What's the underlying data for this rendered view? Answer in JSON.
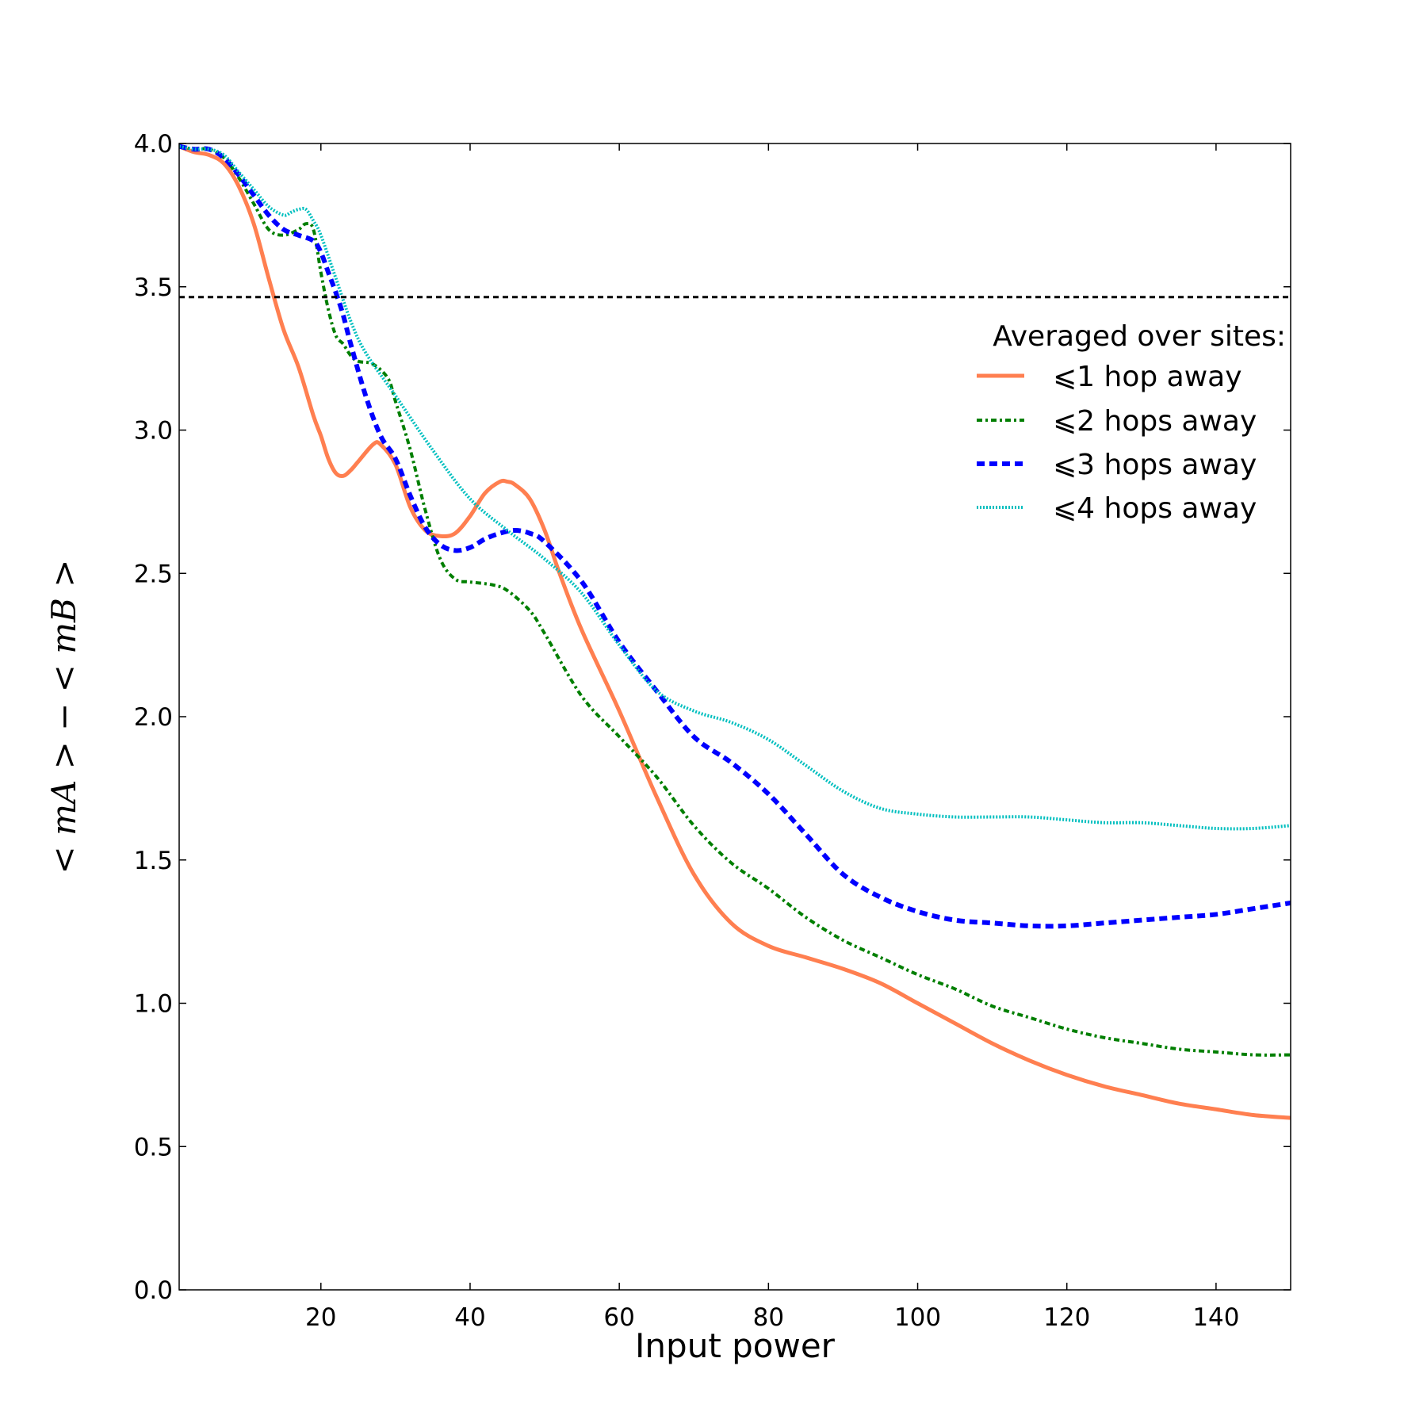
{
  "chart_data": {
    "type": "line",
    "title": "",
    "xlabel": "Input power",
    "ylabel": "< m_A > − < m_B >",
    "ylabel_display": "< mA > − < mB >",
    "xlim": [
      1,
      150
    ],
    "ylim": [
      0.0,
      4.0
    ],
    "xticks": [
      20,
      40,
      60,
      80,
      100,
      120,
      140
    ],
    "yticks": [
      "0.0",
      "0.5",
      "1.0",
      "1.5",
      "2.0",
      "2.5",
      "3.0",
      "3.5",
      "4.0"
    ],
    "grid": false,
    "legend_placement": "upper-right",
    "legend_title": "Averaged over sites:",
    "reference_line": {
      "y": 3.464,
      "style": "dashed",
      "color": "#000000"
    },
    "series": [
      {
        "name": "⩽1 hop away",
        "color": "#ff7f50",
        "dash": "solid",
        "width": 5,
        "x": [
          1,
          3,
          5,
          7,
          9,
          11,
          13,
          15,
          17,
          19,
          20,
          21,
          22,
          23,
          24,
          25,
          27,
          28,
          30,
          32,
          34,
          36,
          38,
          40,
          42,
          44,
          45,
          46,
          48,
          50,
          52,
          55,
          60,
          65,
          70,
          75,
          80,
          85,
          90,
          95,
          100,
          105,
          110,
          115,
          120,
          125,
          130,
          135,
          140,
          145,
          150
        ],
        "y": [
          3.99,
          3.97,
          3.96,
          3.93,
          3.85,
          3.72,
          3.53,
          3.35,
          3.22,
          3.05,
          2.98,
          2.9,
          2.85,
          2.84,
          2.86,
          2.89,
          2.95,
          2.95,
          2.88,
          2.73,
          2.65,
          2.63,
          2.64,
          2.7,
          2.78,
          2.82,
          2.82,
          2.81,
          2.76,
          2.65,
          2.5,
          2.3,
          2.02,
          1.72,
          1.45,
          1.28,
          1.2,
          1.16,
          1.12,
          1.07,
          1.0,
          0.93,
          0.86,
          0.8,
          0.75,
          0.71,
          0.68,
          0.65,
          0.63,
          0.61,
          0.6
        ]
      },
      {
        "name": "⩽2 hops away",
        "color": "#007f00",
        "dash": "dashdot",
        "width": 4,
        "x": [
          1,
          3,
          5,
          7,
          9,
          11,
          13,
          15,
          17,
          18,
          19,
          20,
          21,
          22,
          23,
          24,
          25,
          27,
          29,
          30,
          32,
          34,
          36,
          38,
          40,
          43,
          45,
          48,
          50,
          55,
          60,
          65,
          70,
          75,
          80,
          85,
          90,
          95,
          100,
          105,
          110,
          115,
          120,
          125,
          130,
          135,
          140,
          145,
          150
        ],
        "y": [
          3.99,
          3.98,
          3.98,
          3.95,
          3.88,
          3.79,
          3.7,
          3.68,
          3.7,
          3.72,
          3.7,
          3.55,
          3.42,
          3.33,
          3.3,
          3.26,
          3.24,
          3.23,
          3.18,
          3.1,
          2.93,
          2.72,
          2.55,
          2.48,
          2.47,
          2.46,
          2.44,
          2.37,
          2.29,
          2.07,
          1.93,
          1.79,
          1.62,
          1.49,
          1.4,
          1.3,
          1.22,
          1.16,
          1.1,
          1.05,
          0.99,
          0.95,
          0.91,
          0.88,
          0.86,
          0.84,
          0.83,
          0.82,
          0.82
        ]
      },
      {
        "name": "⩽3 hops away",
        "color": "#0000ff",
        "dash": "dashed",
        "width": 6,
        "x": [
          1,
          3,
          5,
          7,
          9,
          11,
          13,
          15,
          17,
          19,
          20,
          21,
          22,
          23,
          24,
          26,
          28,
          30,
          32,
          34,
          36,
          38,
          40,
          42,
          44,
          46,
          48,
          50,
          55,
          60,
          65,
          70,
          75,
          80,
          85,
          90,
          95,
          100,
          105,
          110,
          115,
          120,
          125,
          130,
          135,
          140,
          145,
          150
        ],
        "y": [
          3.99,
          3.98,
          3.98,
          3.95,
          3.89,
          3.82,
          3.75,
          3.7,
          3.68,
          3.66,
          3.62,
          3.55,
          3.48,
          3.4,
          3.3,
          3.12,
          2.98,
          2.9,
          2.77,
          2.66,
          2.6,
          2.58,
          2.59,
          2.62,
          2.64,
          2.65,
          2.64,
          2.61,
          2.47,
          2.26,
          2.09,
          1.93,
          1.84,
          1.73,
          1.59,
          1.45,
          1.37,
          1.32,
          1.29,
          1.28,
          1.27,
          1.27,
          1.28,
          1.29,
          1.3,
          1.31,
          1.33,
          1.35
        ]
      },
      {
        "name": "⩽4 hops away",
        "color": "#00bfbf",
        "dash": "dotted",
        "width": 4,
        "x": [
          1,
          3,
          5,
          7,
          9,
          11,
          13,
          15,
          16,
          17,
          18,
          19,
          20,
          22,
          24,
          26,
          30,
          35,
          40,
          45,
          50,
          55,
          60,
          65,
          70,
          75,
          80,
          85,
          90,
          95,
          100,
          105,
          110,
          115,
          120,
          125,
          130,
          135,
          140,
          145,
          150
        ],
        "y": [
          3.99,
          3.98,
          3.98,
          3.96,
          3.9,
          3.84,
          3.78,
          3.75,
          3.76,
          3.77,
          3.77,
          3.73,
          3.68,
          3.53,
          3.38,
          3.27,
          3.12,
          2.93,
          2.76,
          2.65,
          2.55,
          2.43,
          2.25,
          2.09,
          2.02,
          1.98,
          1.92,
          1.83,
          1.74,
          1.68,
          1.66,
          1.65,
          1.65,
          1.65,
          1.64,
          1.63,
          1.63,
          1.62,
          1.61,
          1.61,
          1.62
        ]
      }
    ]
  }
}
